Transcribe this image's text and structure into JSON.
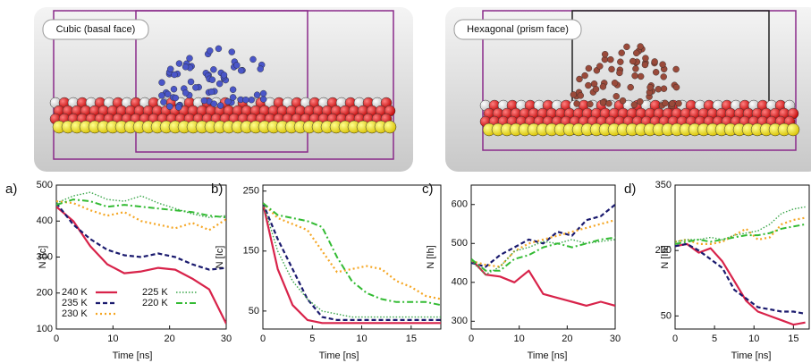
{
  "images": [
    {
      "label": "Cubic (basal face)",
      "color": "#1f2bb8"
    },
    {
      "label": "Hexagonal (prism face)",
      "color": "#d8232a"
    }
  ],
  "chart_data": [
    {
      "type": "line",
      "panel": "a)",
      "ylabel": "N [Ic]",
      "ylabel_color": "#1f2bb8",
      "xlabel": "Time [ns]",
      "xlim": [
        0,
        30
      ],
      "xticks": [
        0,
        10,
        20,
        30
      ],
      "ylim": [
        100,
        500
      ],
      "yticks": [
        100,
        200,
        300,
        400,
        500
      ],
      "legend": true,
      "x": [
        0,
        3,
        6,
        9,
        12,
        15,
        18,
        21,
        24,
        27,
        30
      ],
      "series": [
        {
          "name": "240 K",
          "color": "#d8234a",
          "values": [
            440,
            400,
            330,
            280,
            255,
            260,
            270,
            265,
            240,
            210,
            115
          ]
        },
        {
          "name": "235 K",
          "color": "#1a1a6e",
          "values": [
            450,
            390,
            350,
            320,
            305,
            300,
            310,
            300,
            280,
            265,
            270
          ]
        },
        {
          "name": "230 K",
          "color": "#f5a623",
          "values": [
            455,
            450,
            430,
            415,
            425,
            400,
            390,
            380,
            395,
            375,
            405
          ]
        },
        {
          "name": "225 K",
          "color": "#3aa64a",
          "values": [
            450,
            470,
            480,
            460,
            455,
            470,
            450,
            435,
            420,
            410,
            415
          ]
        },
        {
          "name": "220 K",
          "color": "#33bb33",
          "values": [
            445,
            460,
            455,
            440,
            445,
            440,
            435,
            430,
            425,
            415,
            410
          ]
        }
      ]
    },
    {
      "type": "line",
      "panel": "b)",
      "ylabel": "N [Ic]",
      "ylabel_color": "#1f2bb8",
      "xlabel": "Time [ns]",
      "xlim": [
        0,
        18
      ],
      "xticks": [
        0,
        5,
        10,
        15
      ],
      "ylim": [
        20,
        260
      ],
      "yticks": [
        50,
        150,
        250
      ],
      "x": [
        0,
        1.5,
        3,
        4.5,
        6,
        7.5,
        9,
        10.5,
        12,
        13.5,
        15,
        16.5,
        18
      ],
      "series": [
        {
          "color": "#d8234a",
          "values": [
            230,
            120,
            60,
            35,
            30,
            30,
            30,
            30,
            30,
            30,
            30,
            30,
            30
          ]
        },
        {
          "color": "#1a1a6e",
          "values": [
            230,
            170,
            120,
            70,
            40,
            35,
            35,
            35,
            35,
            35,
            35,
            35,
            35
          ]
        },
        {
          "color": "#f5a623",
          "values": [
            230,
            205,
            195,
            185,
            150,
            115,
            120,
            125,
            120,
            100,
            90,
            75,
            70
          ]
        },
        {
          "color": "#3aa64a",
          "values": [
            230,
            150,
            100,
            70,
            50,
            45,
            40,
            40,
            40,
            40,
            40,
            40,
            40
          ]
        },
        {
          "color": "#33bb33",
          "values": [
            230,
            210,
            205,
            200,
            190,
            140,
            100,
            80,
            70,
            65,
            65,
            65,
            60
          ]
        }
      ]
    },
    {
      "type": "line",
      "panel": "c)",
      "ylabel": "N [Ih]",
      "ylabel_color": "#d8232a",
      "xlabel": "Time [ns]",
      "xlim": [
        0,
        30
      ],
      "xticks": [
        0,
        10,
        20,
        30
      ],
      "ylim": [
        280,
        650
      ],
      "yticks": [
        300,
        400,
        500,
        600
      ],
      "x": [
        0,
        3,
        6,
        9,
        12,
        15,
        18,
        21,
        24,
        27,
        30
      ],
      "series": [
        {
          "color": "#d8234a",
          "values": [
            460,
            420,
            415,
            400,
            430,
            370,
            360,
            350,
            340,
            350,
            340
          ]
        },
        {
          "color": "#1a1a6e",
          "values": [
            450,
            440,
            470,
            490,
            510,
            500,
            530,
            520,
            560,
            570,
            600
          ]
        },
        {
          "color": "#f5a623",
          "values": [
            455,
            445,
            440,
            480,
            500,
            510,
            520,
            530,
            540,
            550,
            560
          ]
        },
        {
          "color": "#3aa64a",
          "values": [
            455,
            420,
            440,
            480,
            490,
            505,
            500,
            510,
            500,
            505,
            510
          ]
        },
        {
          "color": "#33bb33",
          "values": [
            460,
            430,
            430,
            460,
            470,
            490,
            500,
            490,
            500,
            510,
            515
          ]
        }
      ]
    },
    {
      "type": "line",
      "panel": "d)",
      "ylabel": "N [Ih]",
      "ylabel_color": "#d8232a",
      "xlabel": "Time [ns]",
      "xlim": [
        0,
        17
      ],
      "xticks": [
        0,
        5,
        10,
        15
      ],
      "ylim": [
        20,
        350
      ],
      "yticks": [
        50,
        200,
        350
      ],
      "x": [
        0,
        1.5,
        3,
        4.5,
        6,
        7.5,
        9,
        10.5,
        12,
        13.5,
        15,
        16.5
      ],
      "series": [
        {
          "color": "#d8234a",
          "values": [
            210,
            215,
            195,
            205,
            175,
            130,
            85,
            60,
            50,
            40,
            30,
            35
          ]
        },
        {
          "color": "#1a1a6e",
          "values": [
            210,
            215,
            200,
            180,
            160,
            110,
            90,
            70,
            65,
            60,
            60,
            55
          ]
        },
        {
          "color": "#f5a623",
          "values": [
            220,
            225,
            215,
            215,
            220,
            235,
            250,
            225,
            230,
            260,
            270,
            275
          ]
        },
        {
          "color": "#3aa64a",
          "values": [
            220,
            225,
            225,
            230,
            225,
            235,
            240,
            245,
            260,
            285,
            295,
            300
          ]
        },
        {
          "color": "#33bb33",
          "values": [
            215,
            220,
            225,
            220,
            225,
            230,
            235,
            235,
            240,
            250,
            255,
            260
          ]
        }
      ]
    }
  ]
}
